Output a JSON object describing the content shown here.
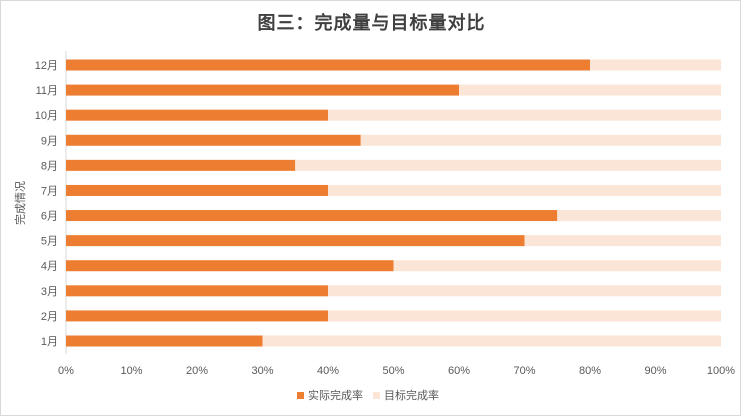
{
  "chart_data": {
    "type": "bar",
    "orientation": "horizontal",
    "stacked": true,
    "title": "图三：完成量与目标量对比",
    "ylabel": "完成情况",
    "xlabel": "",
    "categories": [
      "1月",
      "2月",
      "3月",
      "4月",
      "5月",
      "6月",
      "7月",
      "8月",
      "9月",
      "10月",
      "11月",
      "12月"
    ],
    "series": [
      {
        "name": "实际完成率",
        "color": "#ed7d31",
        "values": [
          0.3,
          0.4,
          0.4,
          0.5,
          0.7,
          0.75,
          0.4,
          0.35,
          0.45,
          0.4,
          0.6,
          0.8
        ]
      },
      {
        "name": "目标完成率",
        "color": "#fbe5d6",
        "values": [
          0.7,
          0.6,
          0.6,
          0.5,
          0.3,
          0.25,
          0.6,
          0.65,
          0.55,
          0.6,
          0.4,
          0.2
        ]
      }
    ],
    "xticks": [
      "0%",
      "10%",
      "20%",
      "30%",
      "40%",
      "50%",
      "60%",
      "70%",
      "80%",
      "90%",
      "100%"
    ],
    "xlim": [
      0,
      1
    ],
    "grid": false,
    "legend": "bottom"
  }
}
